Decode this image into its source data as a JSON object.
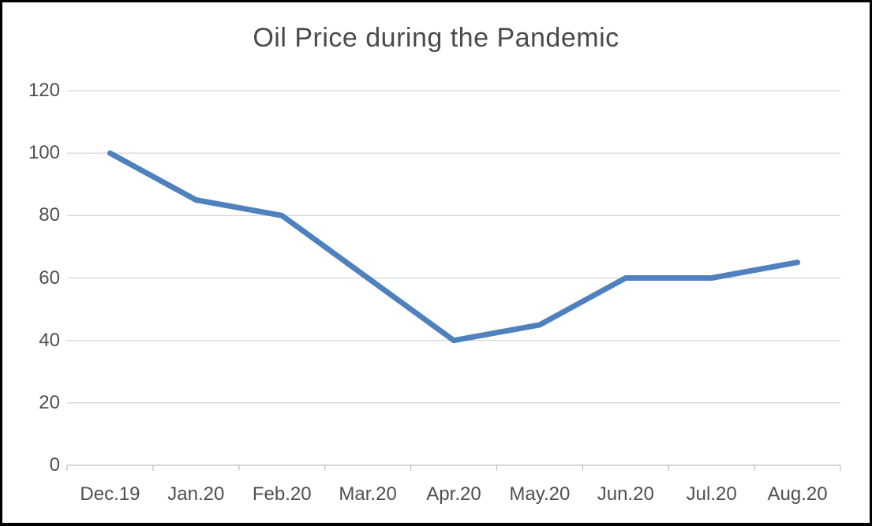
{
  "chart_data": {
    "type": "line",
    "title": "Oil Price during the Pandemic",
    "categories": [
      "Dec.19",
      "Jan.20",
      "Feb.20",
      "Mar.20",
      "Apr.20",
      "May.20",
      "Jun.20",
      "Jul.20",
      "Aug.20"
    ],
    "values": [
      100,
      85,
      80,
      60,
      40,
      45,
      60,
      60,
      65
    ],
    "xlabel": "",
    "ylabel": "",
    "ylim": [
      0,
      120
    ],
    "yticks": [
      0,
      20,
      40,
      60,
      80,
      100,
      120
    ],
    "grid": true,
    "legend": false,
    "colors": {
      "line": "#4E81BD",
      "gridline": "#D9D9D9",
      "axis": "#BFBFBF",
      "text": "#4f4f4f",
      "background": "#FFFFFF",
      "border": "#000000"
    }
  }
}
